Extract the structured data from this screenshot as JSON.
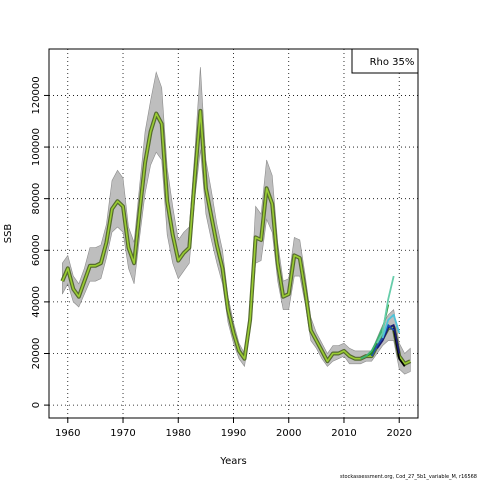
{
  "chart_data": {
    "type": "line",
    "xlabel": "Years",
    "ylabel": "SSB",
    "xlim": [
      1956.6,
      2023.4
    ],
    "ylim": [
      -5000,
      138000
    ],
    "x_ticks": [
      1960,
      1970,
      1980,
      1990,
      2000,
      2010,
      2020
    ],
    "y_ticks": [
      0,
      20000,
      40000,
      60000,
      80000,
      100000,
      120000
    ],
    "grid": true,
    "grid_style": "dotted",
    "legend_position": "top-right",
    "legend_entries": [
      "Rho 35%"
    ],
    "footer": "stockassessment.org, Cod_27_5b1_variable_M, r16568",
    "colors": {
      "band": "#bebebe",
      "band_edge": "#8c8c8c",
      "main_outer": "#556b2f",
      "main_inner": "#9acd32",
      "peel_dark": "#000000",
      "peel_navy": "#191970",
      "peel_blue": "#1e4cb0",
      "peel_green": "#228b22",
      "peel_teal": "#3cb371",
      "peel_light": "#66cdaa",
      "peel_cyan": "#4fc3d8"
    },
    "series": [
      {
        "role": "main",
        "x": [
          1959,
          1960,
          1961,
          1962,
          1963,
          1964,
          1965,
          1966,
          1967,
          1968,
          1969,
          1970,
          1971,
          1972,
          1973,
          1974,
          1975,
          1976,
          1977,
          1978,
          1979,
          1980,
          1981,
          1982,
          1983,
          1984,
          1985,
          1986,
          1987,
          1988,
          1989,
          1990,
          1991,
          1992,
          1993,
          1994,
          1995,
          1996,
          1997,
          1998,
          1999,
          2000,
          2001,
          2002,
          2003,
          2004,
          2005,
          2006,
          2007,
          2008,
          2009,
          2010,
          2011,
          2012,
          2013,
          2014,
          2015,
          2016,
          2017,
          2018,
          2019,
          2020,
          2021,
          2022
        ],
        "y": [
          48000,
          53000,
          45000,
          42000,
          48000,
          54000,
          54000,
          55000,
          63000,
          76000,
          79000,
          77000,
          61000,
          55000,
          75000,
          94000,
          106000,
          113000,
          109000,
          79000,
          66000,
          56000,
          59000,
          61000,
          88000,
          114000,
          84000,
          73000,
          62000,
          53000,
          37000,
          28000,
          21000,
          18000,
          33000,
          65000,
          64000,
          84000,
          78000,
          55000,
          42000,
          43000,
          58000,
          57000,
          44000,
          29000,
          25000,
          21000,
          17000,
          20000,
          20000,
          21000,
          19000,
          18000,
          18000,
          19000,
          19000,
          23000,
          26000,
          30000,
          30000,
          19000,
          16000,
          17000
        ],
        "lower": [
          43000,
          47000,
          40000,
          38000,
          43000,
          48000,
          48000,
          49000,
          57000,
          67000,
          69000,
          67000,
          53000,
          47000,
          65000,
          82000,
          93000,
          98000,
          95000,
          66000,
          55000,
          49000,
          52000,
          55000,
          80000,
          99000,
          74000,
          64000,
          55000,
          47000,
          32000,
          24000,
          18000,
          15000,
          29000,
          55000,
          56000,
          72000,
          67000,
          48000,
          37000,
          37000,
          50000,
          50000,
          39000,
          25000,
          22000,
          18000,
          15000,
          17000,
          18000,
          19000,
          16000,
          16000,
          16000,
          17000,
          17000,
          20000,
          23000,
          25000,
          25000,
          14000,
          12000,
          13000
        ],
        "upper": [
          55000,
          58000,
          50000,
          47000,
          53000,
          61000,
          61000,
          62000,
          70000,
          87000,
          91000,
          88000,
          69000,
          63000,
          85000,
          106000,
          118000,
          129000,
          123000,
          92000,
          77000,
          64000,
          67000,
          69000,
          98000,
          131000,
          95000,
          83000,
          70000,
          60000,
          42000,
          32000,
          24000,
          20000,
          38000,
          77000,
          74000,
          95000,
          89000,
          63000,
          48000,
          49000,
          65000,
          64000,
          50000,
          34000,
          28000,
          24000,
          20000,
          23000,
          23000,
          24000,
          22000,
          21000,
          21000,
          21000,
          21000,
          26000,
          31000,
          35000,
          37000,
          24000,
          20000,
          22000
        ]
      },
      {
        "role": "peel",
        "color": "peel_dark",
        "x": [
          2019,
          2020,
          2021
        ],
        "y": [
          30000,
          18000,
          15000
        ]
      },
      {
        "role": "peel",
        "color": "peel_navy",
        "x": [
          2016,
          2017,
          2018,
          2019,
          2020
        ],
        "y": [
          22000,
          25000,
          30000,
          31000,
          20000
        ]
      },
      {
        "role": "peel",
        "color": "peel_blue",
        "x": [
          2015,
          2016,
          2017,
          2018,
          2019
        ],
        "y": [
          19000,
          23000,
          26000,
          31000,
          29000
        ]
      },
      {
        "role": "peel",
        "color": "peel_green",
        "x": [
          2014,
          2015,
          2016,
          2017,
          2018
        ],
        "y": [
          19000,
          20000,
          25000,
          29000,
          39000
        ]
      },
      {
        "role": "peel",
        "color": "peel_teal",
        "x": [
          2013,
          2014,
          2015,
          2016,
          2017
        ],
        "y": [
          18000,
          19000,
          21000,
          25000,
          30000
        ]
      },
      {
        "role": "peel",
        "color": "peel_light",
        "x": [
          2016,
          2017,
          2018,
          2019
        ],
        "y": [
          24000,
          28000,
          41000,
          50000
        ]
      },
      {
        "role": "peel",
        "color": "peel_cyan",
        "x": [
          2017,
          2018,
          2019,
          2020
        ],
        "y": [
          26000,
          33000,
          35000,
          28000
        ]
      }
    ]
  }
}
